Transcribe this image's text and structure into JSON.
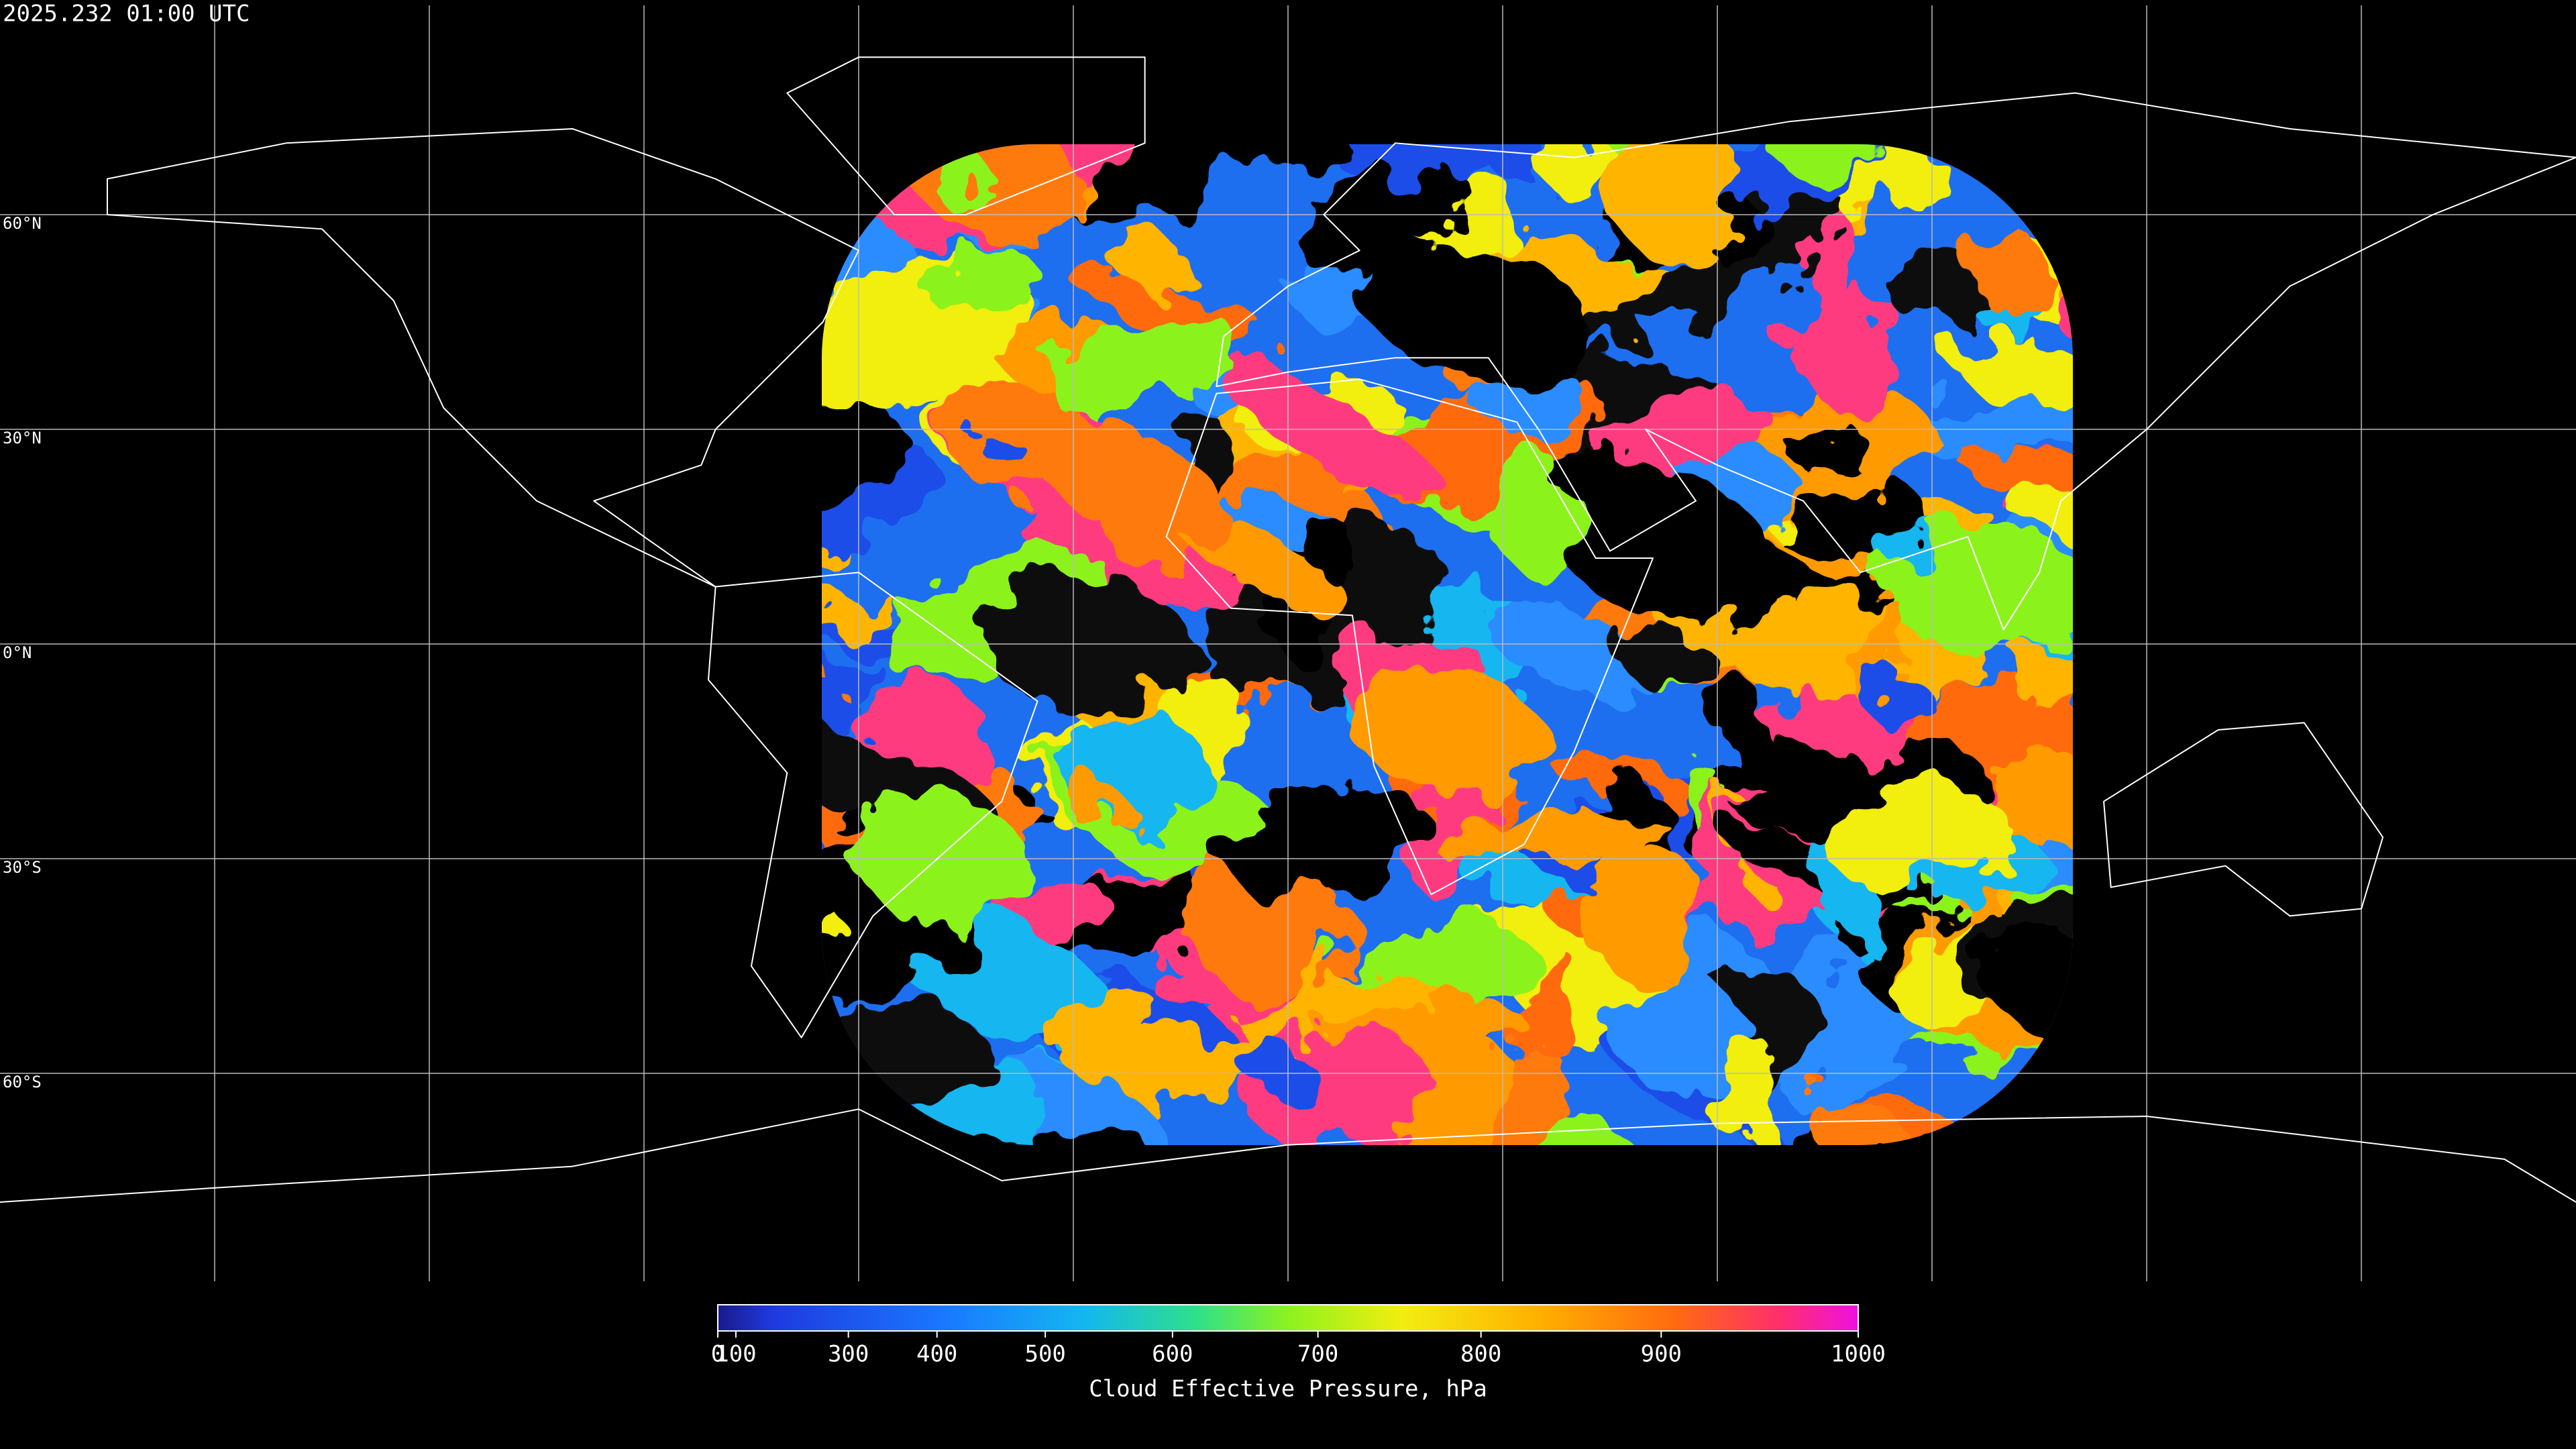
{
  "header": {
    "title": "2025.232 01:00 UTC"
  },
  "map": {
    "lat_labels": [
      "60°N",
      "30°N",
      "0°N",
      "30°S",
      "60°S"
    ]
  },
  "colorbar": {
    "label": "Cloud Effective Pressure, hPa",
    "lim": [
      0,
      1000
    ],
    "scale": "power",
    "ticks": [
      0,
      100,
      300,
      400,
      500,
      600,
      700,
      800,
      900,
      1000
    ]
  }
}
